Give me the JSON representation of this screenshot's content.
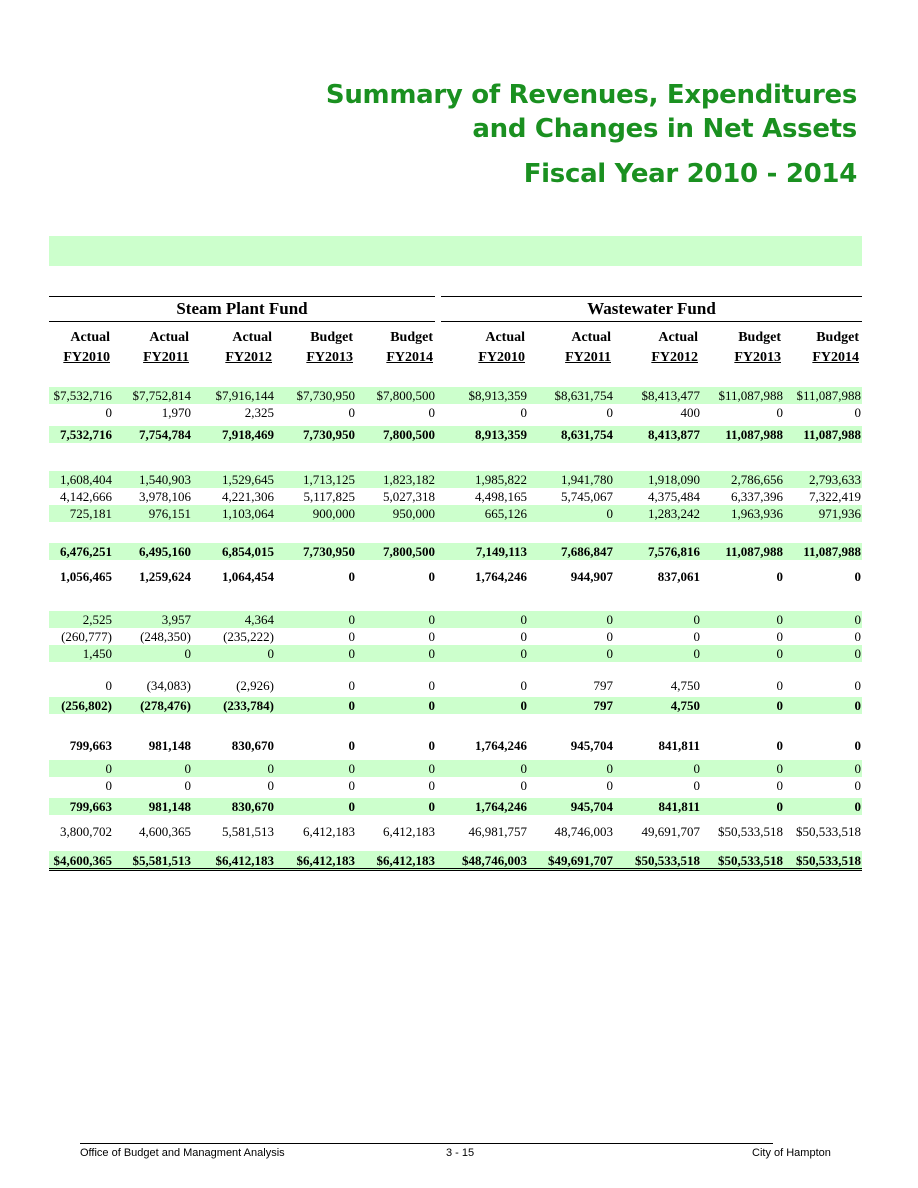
{
  "title": {
    "line1": "Summary of Revenues, Expenditures",
    "line2": "and Changes in Net Assets",
    "line3": "Fiscal Year 2010 - 2014"
  },
  "funds": {
    "steam": "Steam Plant Fund",
    "waste": "Wastewater Fund"
  },
  "columns": [
    {
      "l1": "Actual",
      "l2": "FY2010"
    },
    {
      "l1": "Actual",
      "l2": "FY2011"
    },
    {
      "l1": "Actual",
      "l2": "FY2012"
    },
    {
      "l1": "Budget",
      "l2": "FY2013"
    },
    {
      "l1": "Budget",
      "l2": "FY2014"
    },
    {
      "l1": "Actual",
      "l2": "FY2010"
    },
    {
      "l1": "Actual",
      "l2": "FY2011"
    },
    {
      "l1": "Actual",
      "l2": "FY2012"
    },
    {
      "l1": "Budget",
      "l2": "FY2013"
    },
    {
      "l1": "Budget",
      "l2": "FY2014"
    }
  ],
  "rows": [
    {
      "shade": true,
      "bold": false,
      "v": [
        "$7,532,716",
        "$7,752,814",
        "$7,916,144",
        "$7,730,950",
        "$7,800,500",
        "$8,913,359",
        "$8,631,754",
        "$8,413,477",
        "$11,087,988",
        "$11,087,988"
      ]
    },
    {
      "shade": false,
      "bold": false,
      "v": [
        "0",
        "1,970",
        "2,325",
        "0",
        "0",
        "0",
        "0",
        "400",
        "0",
        "0"
      ]
    },
    {
      "shade": true,
      "bold": true,
      "v": [
        "7,532,716",
        "7,754,784",
        "7,918,469",
        "7,730,950",
        "7,800,500",
        "8,913,359",
        "8,631,754",
        "8,413,877",
        "11,087,988",
        "11,087,988"
      ]
    },
    {
      "shade": true,
      "bold": false,
      "v": [
        "1,608,404",
        "1,540,903",
        "1,529,645",
        "1,713,125",
        "1,823,182",
        "1,985,822",
        "1,941,780",
        "1,918,090",
        "2,786,656",
        "2,793,633"
      ]
    },
    {
      "shade": false,
      "bold": false,
      "v": [
        "4,142,666",
        "3,978,106",
        "4,221,306",
        "5,117,825",
        "5,027,318",
        "4,498,165",
        "5,745,067",
        "4,375,484",
        "6,337,396",
        "7,322,419"
      ]
    },
    {
      "shade": true,
      "bold": false,
      "v": [
        "725,181",
        "976,151",
        "1,103,064",
        "900,000",
        "950,000",
        "665,126",
        "0",
        "1,283,242",
        "1,963,936",
        "971,936"
      ]
    },
    {
      "shade": true,
      "bold": true,
      "v": [
        "6,476,251",
        "6,495,160",
        "6,854,015",
        "7,730,950",
        "7,800,500",
        "7,149,113",
        "7,686,847",
        "7,576,816",
        "11,087,988",
        "11,087,988"
      ]
    },
    {
      "shade": false,
      "bold": true,
      "v": [
        "1,056,465",
        "1,259,624",
        "1,064,454",
        "0",
        "0",
        "1,764,246",
        "944,907",
        "837,061",
        "0",
        "0"
      ]
    },
    {
      "shade": true,
      "bold": false,
      "v": [
        "2,525",
        "3,957",
        "4,364",
        "0",
        "0",
        "0",
        "0",
        "0",
        "0",
        "0"
      ]
    },
    {
      "shade": false,
      "bold": false,
      "v": [
        "(260,777)",
        "(248,350)",
        "(235,222)",
        "0",
        "0",
        "0",
        "0",
        "0",
        "0",
        "0"
      ]
    },
    {
      "shade": true,
      "bold": false,
      "v": [
        "1,450",
        "0",
        "0",
        "0",
        "0",
        "0",
        "0",
        "0",
        "0",
        "0"
      ]
    },
    {
      "shade": false,
      "bold": false,
      "v": [
        "0",
        "(34,083)",
        "(2,926)",
        "0",
        "0",
        "0",
        "797",
        "4,750",
        "0",
        "0"
      ]
    },
    {
      "shade": true,
      "bold": true,
      "v": [
        "(256,802)",
        "(278,476)",
        "(233,784)",
        "0",
        "0",
        "0",
        "797",
        "4,750",
        "0",
        "0"
      ]
    },
    {
      "shade": false,
      "bold": true,
      "v": [
        "799,663",
        "981,148",
        "830,670",
        "0",
        "0",
        "1,764,246",
        "945,704",
        "841,811",
        "0",
        "0"
      ]
    },
    {
      "shade": true,
      "bold": false,
      "v": [
        "0",
        "0",
        "0",
        "0",
        "0",
        "0",
        "0",
        "0",
        "0",
        "0"
      ]
    },
    {
      "shade": false,
      "bold": false,
      "v": [
        "0",
        "0",
        "0",
        "0",
        "0",
        "0",
        "0",
        "0",
        "0",
        "0"
      ]
    },
    {
      "shade": true,
      "bold": true,
      "v": [
        "799,663",
        "981,148",
        "830,670",
        "0",
        "0",
        "1,764,246",
        "945,704",
        "841,811",
        "0",
        "0"
      ]
    },
    {
      "shade": false,
      "bold": false,
      "v": [
        "3,800,702",
        "4,600,365",
        "5,581,513",
        "6,412,183",
        "6,412,183",
        "46,981,757",
        "48,746,003",
        "49,691,707",
        "$50,533,518",
        "$50,533,518"
      ]
    },
    {
      "shade": true,
      "bold": true,
      "total": true,
      "v": [
        "$4,600,365",
        "$5,581,513",
        "$6,412,183",
        "$6,412,183",
        "$6,412,183",
        "$48,746,003",
        "$49,691,707",
        "$50,533,518",
        "$50,533,518",
        "$50,533,518"
      ]
    }
  ],
  "footer": {
    "left": "Office of Budget and Managment Analysis",
    "center": "3 - 15",
    "right": "City of Hampton"
  }
}
